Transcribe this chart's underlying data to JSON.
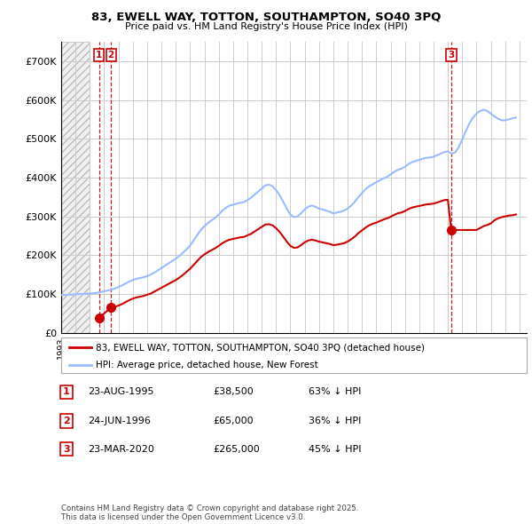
{
  "title": "83, EWELL WAY, TOTTON, SOUTHAMPTON, SO40 3PQ",
  "subtitle": "Price paid vs. HM Land Registry's House Price Index (HPI)",
  "ylim": [
    0,
    750000
  ],
  "yticks": [
    0,
    100000,
    200000,
    300000,
    400000,
    500000,
    600000,
    700000
  ],
  "ytick_labels": [
    "£0",
    "£100K",
    "£200K",
    "£300K",
    "£400K",
    "£500K",
    "£600K",
    "£700K"
  ],
  "grid_color": "#cccccc",
  "sale_color": "#cc0000",
  "hpi_color": "#99bbff",
  "hatch_color": "#cccccc",
  "sale_points": [
    {
      "date": 1995.64,
      "price": 38500,
      "label": "1"
    },
    {
      "date": 1996.48,
      "price": 65000,
      "label": "2"
    },
    {
      "date": 2020.23,
      "price": 265000,
      "label": "3"
    }
  ],
  "vline_color": "#cc0000",
  "legend_sale_label": "83, EWELL WAY, TOTTON, SOUTHAMPTON, SO40 3PQ (detached house)",
  "legend_hpi_label": "HPI: Average price, detached house, New Forest",
  "table_rows": [
    {
      "num": "1",
      "date": "23-AUG-1995",
      "price": "£38,500",
      "pct": "63% ↓ HPI"
    },
    {
      "num": "2",
      "date": "24-JUN-1996",
      "price": "£65,000",
      "pct": "36% ↓ HPI"
    },
    {
      "num": "3",
      "date": "23-MAR-2020",
      "price": "£265,000",
      "pct": "45% ↓ HPI"
    }
  ],
  "footer": "Contains HM Land Registry data © Crown copyright and database right 2025.\nThis data is licensed under the Open Government Licence v3.0.",
  "xlim_start": 1993.0,
  "xlim_end": 2025.5,
  "hatch_end": 1995.0,
  "hpi_data": {
    "1993.0": 97000,
    "1993.25": 97500,
    "1993.5": 98000,
    "1993.75": 98500,
    "1994.0": 99000,
    "1994.25": 99500,
    "1994.5": 100000,
    "1994.75": 100500,
    "1995.0": 101000,
    "1995.25": 102000,
    "1995.5": 103000,
    "1995.75": 105000,
    "1996.0": 107000,
    "1996.25": 109000,
    "1996.5": 111000,
    "1996.75": 114000,
    "1997.0": 118000,
    "1997.25": 122000,
    "1997.5": 127000,
    "1997.75": 132000,
    "1998.0": 136000,
    "1998.25": 139000,
    "1998.5": 141000,
    "1998.75": 143000,
    "1999.0": 146000,
    "1999.25": 150000,
    "1999.5": 155000,
    "1999.75": 161000,
    "2000.0": 167000,
    "2000.25": 173000,
    "2000.5": 179000,
    "2000.75": 185000,
    "2001.0": 191000,
    "2001.25": 198000,
    "2001.5": 206000,
    "2001.75": 215000,
    "2002.0": 225000,
    "2002.25": 238000,
    "2002.5": 252000,
    "2002.75": 265000,
    "2003.0": 275000,
    "2003.25": 283000,
    "2003.5": 290000,
    "2003.75": 296000,
    "2004.0": 305000,
    "2004.25": 315000,
    "2004.5": 322000,
    "2004.75": 328000,
    "2005.0": 330000,
    "2005.25": 333000,
    "2005.5": 335000,
    "2005.75": 337000,
    "2006.0": 342000,
    "2006.25": 348000,
    "2006.5": 356000,
    "2006.75": 364000,
    "2007.0": 372000,
    "2007.25": 380000,
    "2007.5": 382000,
    "2007.75": 378000,
    "2008.0": 368000,
    "2008.25": 355000,
    "2008.5": 338000,
    "2008.75": 320000,
    "2009.0": 305000,
    "2009.25": 298000,
    "2009.5": 300000,
    "2009.75": 308000,
    "2010.0": 318000,
    "2010.25": 325000,
    "2010.5": 328000,
    "2010.75": 325000,
    "2011.0": 320000,
    "2011.25": 318000,
    "2011.5": 315000,
    "2011.75": 312000,
    "2012.0": 308000,
    "2012.25": 310000,
    "2012.5": 312000,
    "2012.75": 315000,
    "2013.0": 320000,
    "2013.25": 328000,
    "2013.5": 338000,
    "2013.75": 350000,
    "2014.0": 360000,
    "2014.25": 370000,
    "2014.5": 378000,
    "2014.75": 383000,
    "2015.0": 388000,
    "2015.25": 393000,
    "2015.5": 398000,
    "2015.75": 402000,
    "2016.0": 408000,
    "2016.25": 415000,
    "2016.5": 420000,
    "2016.75": 423000,
    "2017.0": 428000,
    "2017.25": 435000,
    "2017.5": 440000,
    "2017.75": 443000,
    "2018.0": 446000,
    "2018.25": 449000,
    "2018.5": 451000,
    "2018.75": 452000,
    "2019.0": 454000,
    "2019.25": 458000,
    "2019.5": 462000,
    "2019.75": 466000,
    "2020.0": 468000,
    "2020.25": 462000,
    "2020.5": 465000,
    "2020.75": 478000,
    "2021.0": 498000,
    "2021.25": 520000,
    "2021.5": 540000,
    "2021.75": 555000,
    "2022.0": 565000,
    "2022.25": 572000,
    "2022.5": 575000,
    "2022.75": 572000,
    "2023.0": 565000,
    "2023.25": 558000,
    "2023.5": 552000,
    "2023.75": 548000,
    "2024.0": 548000,
    "2024.25": 550000,
    "2024.5": 553000,
    "2024.75": 555000
  },
  "sale_line_data": {
    "1995.64": 38500,
    "1996.48": 65000,
    "1996.5": 65000,
    "1996.75": 67000,
    "1997.0": 70000,
    "1997.25": 74000,
    "1997.5": 79000,
    "1997.75": 84000,
    "1998.0": 88000,
    "1998.25": 91000,
    "1998.5": 93000,
    "1998.75": 95000,
    "1999.0": 98000,
    "1999.25": 101000,
    "1999.5": 106000,
    "1999.75": 111000,
    "2000.0": 116000,
    "2000.25": 121000,
    "2000.5": 126000,
    "2000.75": 131000,
    "2001.0": 136000,
    "2001.25": 142000,
    "2001.5": 149000,
    "2001.75": 157000,
    "2002.0": 165000,
    "2002.25": 175000,
    "2002.5": 185000,
    "2002.75": 195000,
    "2003.0": 202000,
    "2003.25": 208000,
    "2003.5": 213000,
    "2003.75": 218000,
    "2004.0": 224000,
    "2004.25": 231000,
    "2004.5": 236000,
    "2004.75": 240000,
    "2005.0": 242000,
    "2005.25": 244000,
    "2005.5": 246000,
    "2005.75": 247000,
    "2006.0": 251000,
    "2006.25": 255000,
    "2006.5": 261000,
    "2006.75": 267000,
    "2007.0": 273000,
    "2007.25": 279000,
    "2007.5": 280000,
    "2007.75": 277000,
    "2008.0": 270000,
    "2008.25": 260000,
    "2008.5": 248000,
    "2008.75": 235000,
    "2009.0": 224000,
    "2009.25": 219000,
    "2009.5": 220000,
    "2009.75": 226000,
    "2010.0": 233000,
    "2010.25": 238000,
    "2010.5": 240000,
    "2010.75": 238000,
    "2011.0": 235000,
    "2011.25": 233000,
    "2011.5": 231000,
    "2011.75": 229000,
    "2012.0": 226000,
    "2012.25": 227000,
    "2012.5": 229000,
    "2012.75": 231000,
    "2013.0": 235000,
    "2013.25": 241000,
    "2013.5": 248000,
    "2013.75": 257000,
    "2014.0": 264000,
    "2014.25": 271000,
    "2014.5": 277000,
    "2014.75": 281000,
    "2015.0": 284000,
    "2015.25": 288000,
    "2015.5": 292000,
    "2015.75": 295000,
    "2016.0": 299000,
    "2016.25": 304000,
    "2016.5": 308000,
    "2016.75": 310000,
    "2017.0": 314000,
    "2017.25": 319000,
    "2017.5": 323000,
    "2017.75": 325000,
    "2018.0": 327000,
    "2018.25": 329000,
    "2018.5": 331000,
    "2018.75": 332000,
    "2019.0": 333000,
    "2019.25": 336000,
    "2019.5": 339000,
    "2019.75": 342000,
    "2020.0": 343000,
    "2020.23": 265000,
    "2020.25": 265000,
    "2020.5": 265000,
    "2020.75": 265000,
    "2021.0": 265000,
    "2021.25": 265000,
    "2021.5": 265000,
    "2021.75": 265000,
    "2022.0": 265000,
    "2022.25": 270000,
    "2022.5": 275000,
    "2022.75": 278000,
    "2023.0": 282000,
    "2023.25": 290000,
    "2023.5": 295000,
    "2023.75": 298000,
    "2024.0": 300000,
    "2024.25": 302000,
    "2024.5": 303000,
    "2024.75": 305000
  }
}
